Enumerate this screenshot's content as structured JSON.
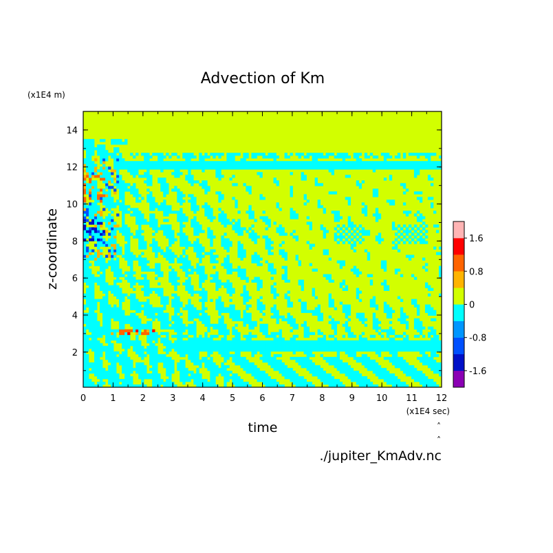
{
  "chart_data": {
    "type": "heatmap",
    "title": "Advection of Km",
    "xlabel": "time",
    "ylabel": "z-coordinate",
    "x_unit": "(x1E4 sec)",
    "y_unit": "(x1E4 m)",
    "source": "./jupiter_KmAdv.nc",
    "xlim": [
      0,
      12
    ],
    "ylim": [
      0.1,
      15
    ],
    "x_ticks": [
      "0",
      "1",
      "2",
      "3",
      "4",
      "5",
      "6",
      "7",
      "8",
      "9",
      "10",
      "11",
      "12"
    ],
    "y_ticks": [
      "2",
      "4",
      "6",
      "8",
      "10",
      "12",
      "14"
    ],
    "colorbar": {
      "tick_labels": [
        "1.6",
        "0.8",
        "0",
        "-0.8",
        "-1.6"
      ],
      "levels": [
        {
          "min": -2.0,
          "max": -1.6,
          "color": "#8b00b4"
        },
        {
          "min": -1.6,
          "max": -1.2,
          "color": "#0010c8"
        },
        {
          "min": -1.2,
          "max": -0.8,
          "color": "#0050ff"
        },
        {
          "min": -0.8,
          "max": -0.4,
          "color": "#0096ff"
        },
        {
          "min": -0.4,
          "max": 0.0,
          "color": "#00ffff"
        },
        {
          "min": 0.0,
          "max": 0.4,
          "color": "#d2ff00"
        },
        {
          "min": 0.4,
          "max": 0.8,
          "color": "#ffb400"
        },
        {
          "min": 0.8,
          "max": 1.2,
          "color": "#ff6400"
        },
        {
          "min": 1.2,
          "max": 1.6,
          "color": "#ff0000"
        },
        {
          "min": 1.6,
          "max": 2.0,
          "color": "#ffb4b4"
        }
      ]
    },
    "field_summary": {
      "background_level": "0 to 0.4",
      "negative_bands_z": [
        [
          0.1,
          2.6
        ],
        [
          2.7,
          3.0
        ],
        [
          11.9,
          12.3
        ]
      ],
      "turbulent_region_time": [
        0,
        4.5
      ],
      "strong_values_near": [
        {
          "time": 0.4,
          "z": 8.5,
          "value": -1.4
        },
        {
          "time": 0.4,
          "z": 10.5,
          "value": 1.0
        },
        {
          "time": 1.3,
          "z": 3.1,
          "value": 1.0
        },
        {
          "time": 1.8,
          "z": 2.0,
          "value": -1.4
        }
      ]
    }
  }
}
